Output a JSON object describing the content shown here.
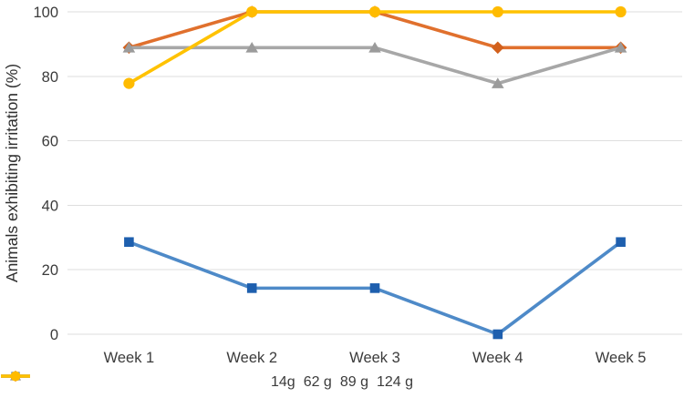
{
  "chart_data": {
    "type": "line",
    "title": "",
    "xlabel": "",
    "ylabel": "Animals exhibiting irritation (%)",
    "categories": [
      "Week 1",
      "Week 2",
      "Week 3",
      "Week 4",
      "Week 5"
    ],
    "ylim": [
      0,
      100
    ],
    "yticks": [
      0,
      20,
      40,
      60,
      80,
      100
    ],
    "grid": true,
    "legend_position": "bottom",
    "series": [
      {
        "name": "14g",
        "color": "#4e8ac8",
        "marker_color": "#1e5fae",
        "marker": "square",
        "values": [
          28.6,
          14.3,
          14.3,
          0,
          28.6
        ]
      },
      {
        "name": "62 g",
        "color": "#e0702d",
        "marker_color": "#d2601c",
        "marker": "diamond",
        "values": [
          88.9,
          100,
          100,
          88.9,
          88.9
        ]
      },
      {
        "name": "89 g",
        "color": "#a7a7a7",
        "marker_color": "#9b9b9b",
        "marker": "triangle",
        "values": [
          88.9,
          88.9,
          88.9,
          77.8,
          88.9
        ]
      },
      {
        "name": "124 g",
        "color": "#ffc200",
        "marker_color": "#ffbb00",
        "marker": "circle",
        "values": [
          77.8,
          100,
          100,
          100,
          100
        ]
      }
    ]
  },
  "colors": {
    "background": "#ffffff",
    "grid": "#dedede",
    "tick_text": "#3b3b3b",
    "axis_title_text": "#2f2f2f"
  }
}
